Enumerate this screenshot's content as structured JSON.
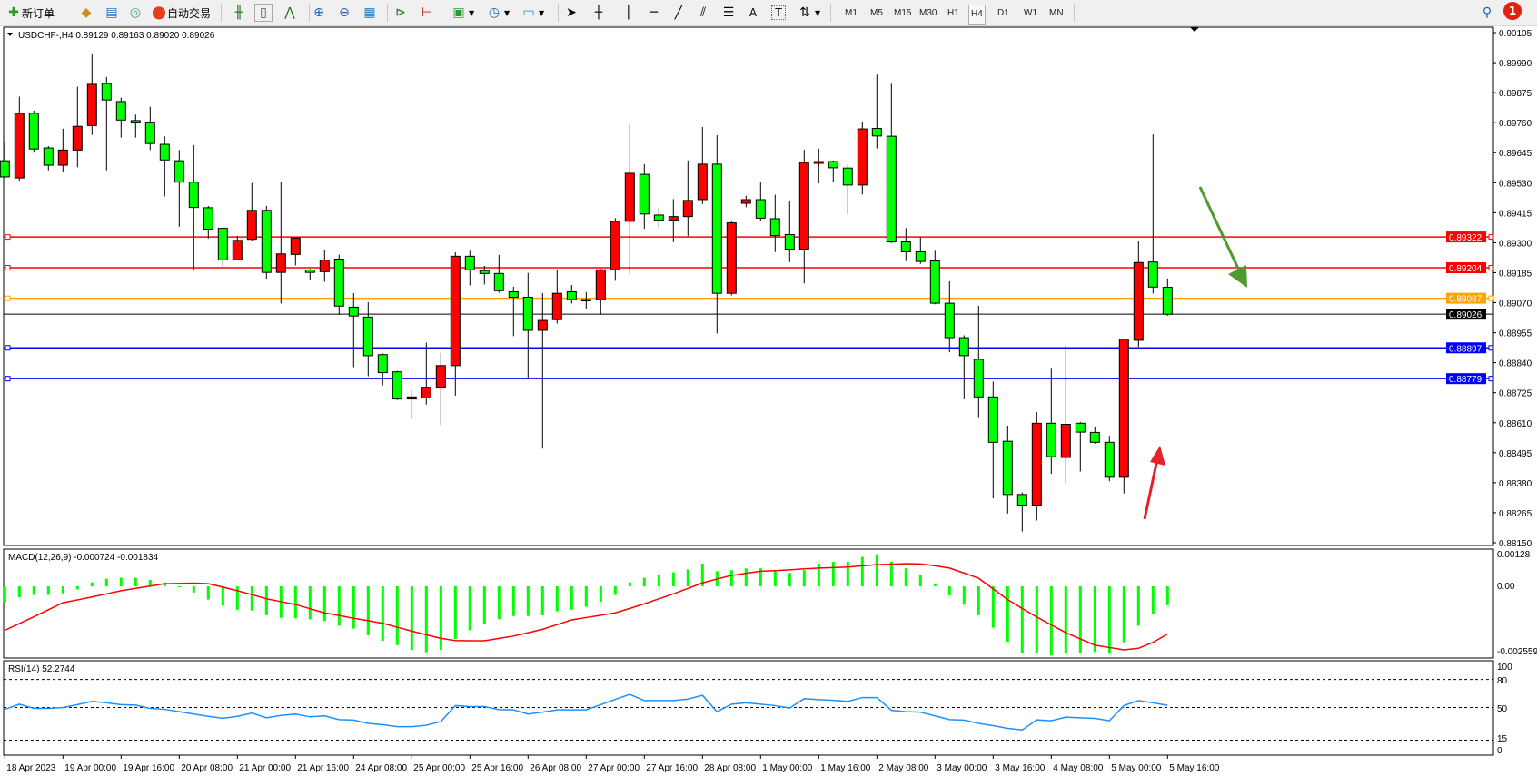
{
  "toolbar": {
    "new_order_label": "新订单",
    "auto_trading_label": "自动交易",
    "timeframes": [
      "M1",
      "M5",
      "M15",
      "M30",
      "H1",
      "H4",
      "D1",
      "W1",
      "MN"
    ],
    "selected_timeframe": "H4",
    "notification_count": "1",
    "icons": [
      "new-order-icon",
      "market-watch-icon",
      "navigator-icon",
      "signals-icon",
      "auto-trading-icon",
      "bar-chart-icon",
      "candlestick-icon",
      "line-chart-icon",
      "zoom-in-icon",
      "zoom-out-icon",
      "tile-windows-icon",
      "auto-scroll-icon",
      "chart-shift-icon",
      "indicators-icon",
      "periods-icon",
      "templates-icon",
      "cursor-icon",
      "crosshair-icon",
      "vertical-line-icon",
      "horizontal-line-icon",
      "trendline-icon",
      "equidistant-channel-icon",
      "fibonacci-icon",
      "text-icon",
      "text-label-icon",
      "arrows-icon",
      "search-icon",
      "notifications-icon"
    ]
  },
  "chart": {
    "header": "USDCHF-,H4  0.89129 0.89163 0.89020 0.89026",
    "colors": {
      "bull": "#ff0000",
      "bear": "#00ff00",
      "wick": "#000000",
      "macd_hist": "#00ff00",
      "macd_signal": "#ff0000",
      "rsi": "#1e90ff"
    },
    "levels": [
      {
        "price": "0.89322",
        "color": "#ff0000"
      },
      {
        "price": "0.89204",
        "color": "#ff0000"
      },
      {
        "price": "0.89087",
        "color": "#ffa500"
      },
      {
        "price": "0.89026",
        "color": "#000000"
      },
      {
        "price": "0.88897",
        "color": "#0000ff"
      },
      {
        "price": "0.88779",
        "color": "#0000ff"
      }
    ],
    "annotations": [
      {
        "type": "arrow",
        "direction": "down-right",
        "color": "#4e9a2e"
      },
      {
        "type": "arrow",
        "direction": "up",
        "color": "#e8202a"
      }
    ]
  },
  "chart_data": [
    {
      "type": "candlestick",
      "title": "USDCHF-,H4",
      "ylim": [
        0.8815,
        0.90105
      ],
      "y_ticks": [
        "0.90105",
        "0.89990",
        "0.89875",
        "0.89760",
        "0.89645",
        "0.89530",
        "0.89415",
        "0.89300",
        "0.89185",
        "0.89070",
        "0.88955",
        "0.88840",
        "0.88725",
        "0.88610",
        "0.88495",
        "0.88380",
        "0.88265",
        "0.88150"
      ],
      "x_ticks": [
        "18 Apr 2023",
        "19 Apr 00:00",
        "19 Apr 16:00",
        "20 Apr 08:00",
        "21 Apr 00:00",
        "21 Apr 16:00",
        "24 Apr 08:00",
        "25 Apr 00:00",
        "25 Apr 16:00",
        "26 Apr 08:00",
        "27 Apr 00:00",
        "27 Apr 16:00",
        "28 Apr 08:00",
        "1 May 00:00",
        "1 May 16:00",
        "2 May 08:00",
        "3 May 00:00",
        "3 May 16:00",
        "4 May 08:00",
        "5 May 00:00",
        "5 May 16:00"
      ],
      "ohlc": [
        [
          0.89614,
          0.89687,
          0.89548,
          0.89552
        ],
        [
          0.89548,
          0.8986,
          0.89538,
          0.89796
        ],
        [
          0.89796,
          0.89806,
          0.89645,
          0.89659
        ],
        [
          0.89663,
          0.8967,
          0.89577,
          0.89597
        ],
        [
          0.89597,
          0.89737,
          0.8957,
          0.89655
        ],
        [
          0.89655,
          0.89898,
          0.89589,
          0.89746
        ],
        [
          0.89749,
          0.90023,
          0.89713,
          0.89907
        ],
        [
          0.8991,
          0.89935,
          0.89577,
          0.89847
        ],
        [
          0.89841,
          0.89856,
          0.89703,
          0.8977
        ],
        [
          0.89768,
          0.89791,
          0.89703,
          0.89762
        ],
        [
          0.89762,
          0.89821,
          0.89655,
          0.8968
        ],
        [
          0.89677,
          0.89708,
          0.89477,
          0.89617
        ],
        [
          0.89614,
          0.89655,
          0.89361,
          0.89532
        ],
        [
          0.89532,
          0.89674,
          0.89195,
          0.89435
        ],
        [
          0.89434,
          0.89441,
          0.89316,
          0.89352
        ],
        [
          0.89355,
          0.89356,
          0.89208,
          0.89234
        ],
        [
          0.89234,
          0.89326,
          0.89234,
          0.89309
        ],
        [
          0.89313,
          0.89529,
          0.89306,
          0.89424
        ],
        [
          0.89424,
          0.89441,
          0.89162,
          0.89186
        ],
        [
          0.89186,
          0.89532,
          0.89067,
          0.89257
        ],
        [
          0.89255,
          0.89318,
          0.89213,
          0.89318
        ],
        [
          0.89195,
          0.892,
          0.89157,
          0.89186
        ],
        [
          0.89189,
          0.89272,
          0.8915,
          0.89233
        ],
        [
          0.89237,
          0.89254,
          0.89024,
          0.89057
        ],
        [
          0.89053,
          0.89107,
          0.88823,
          0.89019
        ],
        [
          0.89015,
          0.89072,
          0.88788,
          0.88867
        ],
        [
          0.88871,
          0.88876,
          0.88753,
          0.88802
        ],
        [
          0.88805,
          0.88809,
          0.88697,
          0.88701
        ],
        [
          0.88701,
          0.88734,
          0.88624,
          0.88709
        ],
        [
          0.88705,
          0.88917,
          0.8868,
          0.88746
        ],
        [
          0.88746,
          0.88878,
          0.88601,
          0.88829
        ],
        [
          0.88829,
          0.89263,
          0.88714,
          0.89248
        ],
        [
          0.89248,
          0.89269,
          0.89136,
          0.89196
        ],
        [
          0.89193,
          0.89211,
          0.8914,
          0.89182
        ],
        [
          0.89182,
          0.89253,
          0.89108,
          0.89116
        ],
        [
          0.89112,
          0.89131,
          0.88942,
          0.89091
        ],
        [
          0.89091,
          0.89184,
          0.88779,
          0.88964
        ],
        [
          0.88964,
          0.89107,
          0.88511,
          0.89002
        ],
        [
          0.89005,
          0.89198,
          0.8899,
          0.89106
        ],
        [
          0.89112,
          0.89138,
          0.89067,
          0.89082
        ],
        [
          0.89077,
          0.89111,
          0.89045,
          0.89082
        ],
        [
          0.89082,
          0.89199,
          0.89024,
          0.89196
        ],
        [
          0.89196,
          0.89394,
          0.89154,
          0.89382
        ],
        [
          0.89382,
          0.89757,
          0.89181,
          0.89566
        ],
        [
          0.89562,
          0.89601,
          0.89353,
          0.8941
        ],
        [
          0.89406,
          0.89435,
          0.89357,
          0.89386
        ],
        [
          0.89386,
          0.89467,
          0.89302,
          0.894
        ],
        [
          0.894,
          0.89615,
          0.89325,
          0.89462
        ],
        [
          0.89465,
          0.89743,
          0.89448,
          0.89601
        ],
        [
          0.89601,
          0.89712,
          0.88952,
          0.89106
        ],
        [
          0.89106,
          0.89382,
          0.89098,
          0.89376
        ],
        [
          0.89451,
          0.8948,
          0.89436,
          0.89465
        ],
        [
          0.89465,
          0.89532,
          0.89385,
          0.89394
        ],
        [
          0.89392,
          0.89484,
          0.89264,
          0.89327
        ],
        [
          0.89331,
          0.8946,
          0.89226,
          0.89275
        ],
        [
          0.89275,
          0.89656,
          0.89144,
          0.89607
        ],
        [
          0.89604,
          0.8966,
          0.89527,
          0.89611
        ],
        [
          0.89611,
          0.89615,
          0.89531,
          0.89587
        ],
        [
          0.89586,
          0.89599,
          0.89409,
          0.89521
        ],
        [
          0.89521,
          0.89764,
          0.89485,
          0.89736
        ],
        [
          0.89738,
          0.89944,
          0.89661,
          0.89709
        ],
        [
          0.89708,
          0.89909,
          0.89299,
          0.89303
        ],
        [
          0.89303,
          0.89356,
          0.89229,
          0.89265
        ],
        [
          0.89265,
          0.89321,
          0.89219,
          0.89228
        ],
        [
          0.8923,
          0.89269,
          0.89064,
          0.89068
        ],
        [
          0.89068,
          0.89152,
          0.8888,
          0.88936
        ],
        [
          0.88936,
          0.88945,
          0.887,
          0.88867
        ],
        [
          0.88853,
          0.89058,
          0.88628,
          0.88709
        ],
        [
          0.88709,
          0.88768,
          0.8832,
          0.88535
        ],
        [
          0.88539,
          0.88599,
          0.88262,
          0.88335
        ],
        [
          0.88335,
          0.88343,
          0.88193,
          0.88294
        ],
        [
          0.88294,
          0.88651,
          0.88235,
          0.88608
        ],
        [
          0.88608,
          0.88817,
          0.88414,
          0.8848
        ],
        [
          0.88477,
          0.88906,
          0.88379,
          0.88604
        ],
        [
          0.88608,
          0.88613,
          0.88423,
          0.88574
        ],
        [
          0.88573,
          0.88595,
          0.8853,
          0.88535
        ],
        [
          0.88535,
          0.8856,
          0.88386,
          0.88401
        ],
        [
          0.88401,
          0.8893,
          0.88339,
          0.8893
        ],
        [
          0.88926,
          0.89308,
          0.88901,
          0.89224
        ],
        [
          0.89226,
          0.89715,
          0.89105,
          0.8913
        ],
        [
          0.89129,
          0.89163,
          0.8902,
          0.89026
        ]
      ]
    },
    {
      "type": "bar",
      "title": "MACD(12,26,9) -0.000724 -0.001834",
      "ylim": [
        -0.002559,
        0.00128
      ],
      "y_ticks": [
        "0.00128",
        "0.00",
        "-0.002559"
      ],
      "histogram": [
        -0.00063,
        -0.00042,
        -0.00033,
        -0.00033,
        -0.00027,
        -0.00012,
        0.00015,
        0.00029,
        0.00033,
        0.00033,
        0.00024,
        0.00015,
        -2e-05,
        -0.00024,
        -0.00051,
        -0.00075,
        -0.0009,
        -0.00093,
        -0.00111,
        -0.00121,
        -0.00123,
        -0.00127,
        -0.00133,
        -0.00151,
        -0.00162,
        -0.00188,
        -0.00209,
        -0.00226,
        -0.00244,
        -0.00253,
        -0.00244,
        -0.00202,
        -0.00169,
        -0.00144,
        -0.00126,
        -0.00114,
        -0.00114,
        -0.00111,
        -0.00096,
        -0.0009,
        -0.00078,
        -0.0006,
        -0.00033,
        0.00015,
        0.00033,
        0.00044,
        0.00054,
        0.00065,
        0.00087,
        0.00058,
        0.00062,
        0.00069,
        0.00069,
        0.00058,
        0.00051,
        0.00062,
        0.00087,
        0.00094,
        0.00094,
        0.00113,
        0.00123,
        0.00094,
        0.00069,
        0.00044,
        7e-05,
        -0.00035,
        -0.00071,
        -0.00111,
        -0.00159,
        -0.00213,
        -0.00257,
        -0.00257,
        -0.00266,
        -0.00259,
        -0.00257,
        -0.00252,
        -0.00259,
        -0.00215,
        -0.00151,
        -0.00108,
        -0.000724
      ],
      "signal": [
        -0.00169,
        -0.00143,
        -0.00117,
        -0.0009,
        -0.00063,
        -0.00052,
        -0.00041,
        -0.00029,
        -0.00017,
        -8e-05,
        1e-05,
        0.0001,
        0.00011,
        0.00012,
        0.0001,
        -3e-05,
        -0.00017,
        -0.00032,
        -0.00048,
        -0.00059,
        -0.0007,
        -0.00086,
        -0.00102,
        -0.00112,
        -0.00123,
        -0.00132,
        -0.00142,
        -0.00157,
        -0.00172,
        -0.00186,
        -0.002,
        -0.00208,
        -0.00209,
        -0.00209,
        -0.002,
        -0.00191,
        -0.00178,
        -0.00165,
        -0.00147,
        -0.00129,
        -0.0012,
        -0.00111,
        -0.00102,
        -0.00085,
        -0.00067,
        -0.00048,
        -0.00029,
        -8e-05,
        0.00013,
        0.00028,
        0.00042,
        0.0005,
        0.00058,
        0.0006,
        0.00063,
        0.00067,
        0.0007,
        0.00072,
        0.00074,
        0.00079,
        0.00083,
        0.00085,
        0.00087,
        0.00086,
        0.00079,
        0.0007,
        0.00051,
        0.00031,
        -0.0001,
        -0.00051,
        -0.00085,
        -0.00118,
        -0.00148,
        -0.00178,
        -0.00202,
        -0.00226,
        -0.00235,
        -0.00244,
        -0.00238,
        -0.00215,
        -0.001834
      ]
    },
    {
      "type": "line",
      "title": "RSI(14) 52.2744",
      "ylim": [
        0,
        100
      ],
      "y_ticks": [
        "100",
        "80",
        "50",
        "15",
        "0"
      ],
      "levels": [
        80,
        50,
        15
      ],
      "values": [
        48,
        53.5,
        49,
        49,
        50,
        53,
        56.5,
        55,
        53,
        52.5,
        49,
        48,
        45.5,
        43,
        40.5,
        38.5,
        40.5,
        44,
        39,
        41.5,
        43,
        40,
        41,
        37,
        36.5,
        33,
        31.5,
        29.5,
        29.5,
        31,
        35,
        52,
        51,
        51,
        47.7,
        47.4,
        43,
        45,
        47.4,
        47.4,
        47.5,
        53,
        58.7,
        64,
        57.4,
        57.4,
        57.4,
        59,
        63,
        45.5,
        53.5,
        55,
        53.5,
        52,
        49.4,
        59.4,
        58.4,
        57.7,
        56.5,
        60.6,
        60.6,
        47,
        45.5,
        45,
        41,
        37,
        36.5,
        33,
        30.6,
        27.7,
        26,
        36.8,
        35.8,
        39.7,
        39,
        38.4,
        35.8,
        52,
        57.4,
        55,
        52.2744
      ]
    }
  ]
}
